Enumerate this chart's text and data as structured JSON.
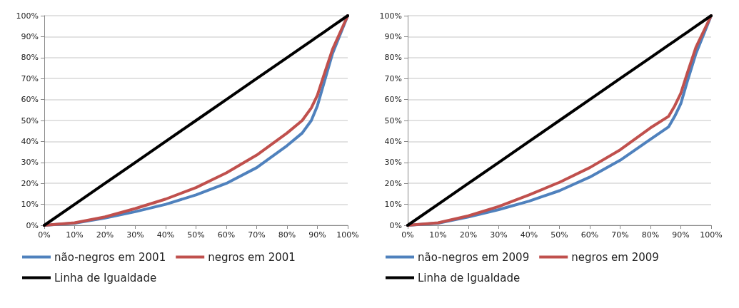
{
  "chart_data": [
    {
      "type": "line",
      "x": [
        0,
        10,
        20,
        30,
        40,
        50,
        60,
        70,
        80,
        85,
        88,
        90,
        92,
        95,
        100
      ],
      "series": [
        {
          "name": "não-negros em 2001",
          "color": "#4f81bd",
          "values": [
            0,
            1,
            3.5,
            6.5,
            10,
            14.5,
            20,
            27.5,
            38,
            44,
            50,
            57,
            67,
            82,
            100
          ]
        },
        {
          "name": "negros em 2001",
          "color": "#c0504d",
          "values": [
            0,
            1.2,
            4,
            8,
            12.5,
            18,
            25,
            33.5,
            44,
            50,
            56,
            62,
            71,
            84,
            100
          ]
        },
        {
          "name": "Linha de Igualdade",
          "color": "#000000",
          "values": [
            0,
            10,
            20,
            30,
            40,
            50,
            60,
            70,
            80,
            85,
            88,
            90,
            92,
            95,
            100
          ]
        }
      ],
      "xlim": [
        0,
        100
      ],
      "ylim": [
        0,
        100
      ],
      "xticks": [
        {
          "value": 0,
          "label": "0%"
        },
        {
          "value": 10,
          "label": "10%"
        },
        {
          "value": 20,
          "label": "20%"
        },
        {
          "value": 30,
          "label": "30%"
        },
        {
          "value": 40,
          "label": "40%"
        },
        {
          "value": 50,
          "label": "50%"
        },
        {
          "value": 60,
          "label": "60%"
        },
        {
          "value": 70,
          "label": "70%"
        },
        {
          "value": 80,
          "label": "80%"
        },
        {
          "value": 90,
          "label": "90%"
        },
        {
          "value": 100,
          "label": "100%"
        }
      ],
      "yticks": [
        {
          "value": 0,
          "label": "0%"
        },
        {
          "value": 10,
          "label": "10%"
        },
        {
          "value": 20,
          "label": "20%"
        },
        {
          "value": 30,
          "label": "30%"
        },
        {
          "value": 40,
          "label": "40%"
        },
        {
          "value": 50,
          "label": "50%"
        },
        {
          "value": 60,
          "label": "60%"
        },
        {
          "value": 70,
          "label": "70%"
        },
        {
          "value": 80,
          "label": "80%"
        },
        {
          "value": 90,
          "label": "90%"
        },
        {
          "value": 100,
          "label": "100%"
        }
      ],
      "grid": "y",
      "legend": "bottom",
      "marker": "none",
      "line_style": "solid"
    },
    {
      "type": "line",
      "x": [
        0,
        10,
        20,
        30,
        40,
        50,
        60,
        70,
        80,
        86,
        88,
        90,
        92,
        95,
        100
      ],
      "series": [
        {
          "name": "não-negros em 2009",
          "color": "#4f81bd",
          "values": [
            0,
            1,
            4,
            7.5,
            11.5,
            16.5,
            23,
            31,
            41,
            47,
            52,
            58,
            68,
            82,
            100
          ]
        },
        {
          "name": "negros em 2009",
          "color": "#c0504d",
          "values": [
            0,
            1.2,
            4.5,
            9,
            14.5,
            20.5,
            27.5,
            36,
            46.5,
            52,
            57,
            63,
            72,
            85,
            100
          ]
        },
        {
          "name": "Linha de Igualdade",
          "color": "#000000",
          "values": [
            0,
            10,
            20,
            30,
            40,
            50,
            60,
            70,
            80,
            86,
            88,
            90,
            92,
            95,
            100
          ]
        }
      ],
      "xlim": [
        0,
        100
      ],
      "ylim": [
        0,
        100
      ],
      "xticks": [
        {
          "value": 0,
          "label": "0%"
        },
        {
          "value": 10,
          "label": "10%"
        },
        {
          "value": 20,
          "label": "20%"
        },
        {
          "value": 30,
          "label": "30%"
        },
        {
          "value": 40,
          "label": "40%"
        },
        {
          "value": 50,
          "label": "50%"
        },
        {
          "value": 60,
          "label": "60%"
        },
        {
          "value": 70,
          "label": "70%"
        },
        {
          "value": 80,
          "label": "80%"
        },
        {
          "value": 90,
          "label": "90%"
        },
        {
          "value": 100,
          "label": "100%"
        }
      ],
      "yticks": [
        {
          "value": 0,
          "label": "0%"
        },
        {
          "value": 10,
          "label": "10%"
        },
        {
          "value": 20,
          "label": "20%"
        },
        {
          "value": 30,
          "label": "30%"
        },
        {
          "value": 40,
          "label": "40%"
        },
        {
          "value": 50,
          "label": "50%"
        },
        {
          "value": 60,
          "label": "60%"
        },
        {
          "value": 70,
          "label": "70%"
        },
        {
          "value": 80,
          "label": "80%"
        },
        {
          "value": 90,
          "label": "90%"
        },
        {
          "value": 100,
          "label": "100%"
        }
      ],
      "grid": "y",
      "legend": "bottom",
      "marker": "none",
      "line_style": "solid"
    }
  ]
}
